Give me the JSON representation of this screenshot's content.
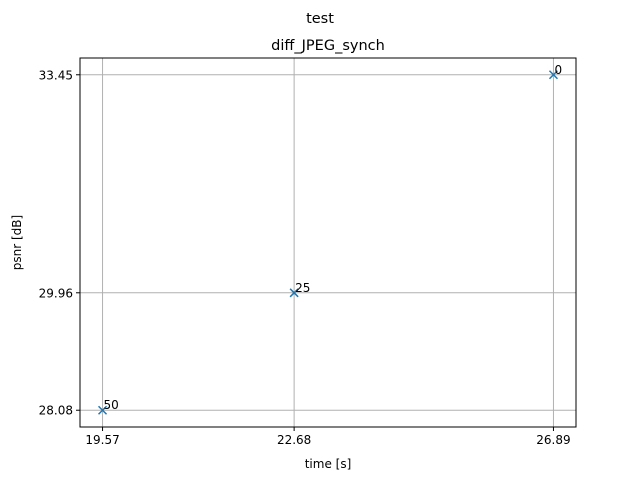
{
  "figure": {
    "suptitle": "test"
  },
  "chart_data": {
    "type": "scatter",
    "title": "diff_JPEG_synch",
    "xlabel": "time [s]",
    "ylabel": "psnr [dB]",
    "grid": true,
    "marker": "x",
    "marker_color": "#1f77b4",
    "xticks": [
      19.57,
      22.68,
      26.89
    ],
    "xtick_labels": [
      "19.57",
      "22.68",
      "26.89"
    ],
    "yticks": [
      28.08,
      29.96,
      33.45
    ],
    "ytick_labels": [
      "28.08",
      "29.96",
      "33.45"
    ],
    "xlim": [
      19.204,
      27.256
    ],
    "ylim": [
      27.8115,
      33.7185
    ],
    "points": [
      {
        "x": 26.89,
        "y": 33.45,
        "label": "0"
      },
      {
        "x": 22.68,
        "y": 29.96,
        "label": "25"
      },
      {
        "x": 19.57,
        "y": 28.08,
        "label": "50"
      }
    ]
  }
}
